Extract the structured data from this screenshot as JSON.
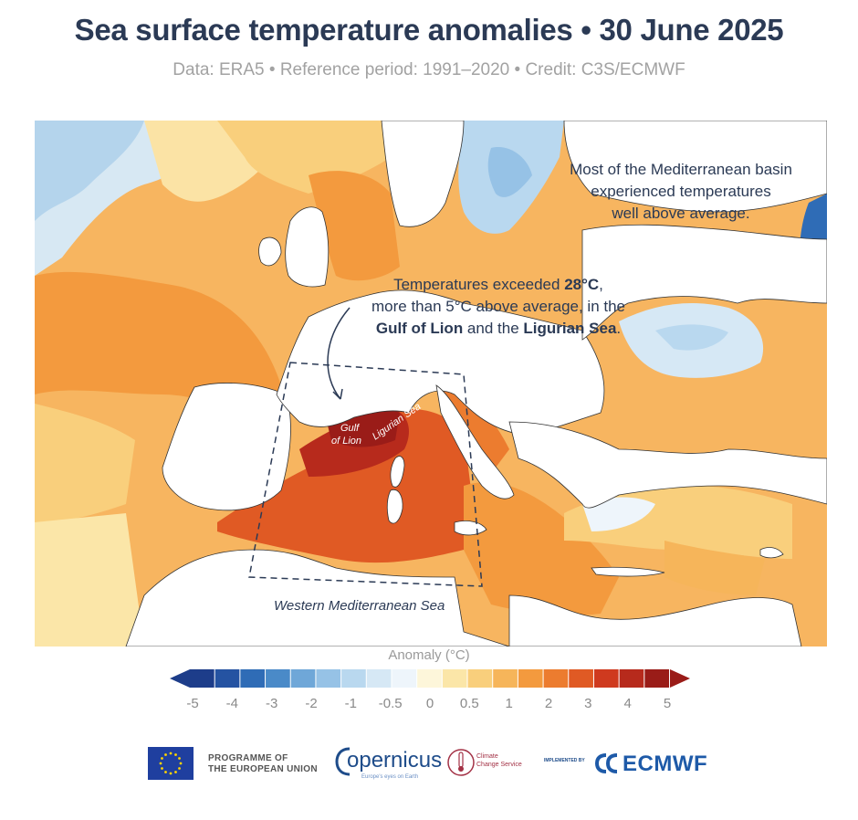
{
  "header": {
    "title": "Sea surface temperature anomalies • 30 June 2025",
    "subtitle": "Data: ERA5 • Reference period: 1991–2020 • Credit: C3S/ECMWF"
  },
  "annotations": {
    "basin_line1": "Most of the Mediterranean basin",
    "basin_line2": "experienced temperatures",
    "basin_line3": "well above average.",
    "temp_line1_a": "Temperatures exceeded ",
    "temp_line1_b": "28°C",
    "temp_line1_c": ",",
    "temp_line2": "more than 5°C above average, in the",
    "temp_line3_a": "Gulf of Lion",
    "temp_line3_b": " and the ",
    "temp_line3_c": "Ligurian Sea",
    "temp_line3_d": ".",
    "box_label": "Western Mediterranean Sea",
    "gulf_label_1": "Gulf",
    "gulf_label_2": "of Lion",
    "ligurian_label": "Ligurian Sea"
  },
  "legend": {
    "title": "Anomaly (°C)",
    "ticks": [
      "-5",
      "-4",
      "-3",
      "-2",
      "-1",
      "-0.5",
      "0",
      "0.5",
      "1",
      "2",
      "3",
      "4",
      "5"
    ],
    "colors": [
      "#1d3d8a",
      "#2553a2",
      "#2f6cb6",
      "#4a8ac8",
      "#6fa7d8",
      "#96c2e6",
      "#b9d8ef",
      "#d6e8f5",
      "#eef5fb",
      "#fdf6da",
      "#fbe6a8",
      "#f9cf7c",
      "#f6b55a",
      "#f39a3e",
      "#ec7c2f",
      "#e05a24",
      "#cf3a1f",
      "#b72a1c",
      "#9a1c18"
    ]
  },
  "footer": {
    "eu_line1": "PROGRAMME OF",
    "eu_line2": "THE EUROPEAN UNION",
    "copernicus": "opernicus",
    "copernicus_tag": "Europe's eyes on Earth",
    "c3s_line1": "Climate",
    "c3s_line2": "Change Service",
    "implemented_by": "IMPLEMENTED BY",
    "ecmwf": "ECMWF"
  },
  "colors": {
    "title": "#2b3a55",
    "land": "#ffffff",
    "ocean_warm": "#f6b55a",
    "ocean_hot": "#cf3a1f",
    "ocean_cool": "#b9d8ef"
  }
}
